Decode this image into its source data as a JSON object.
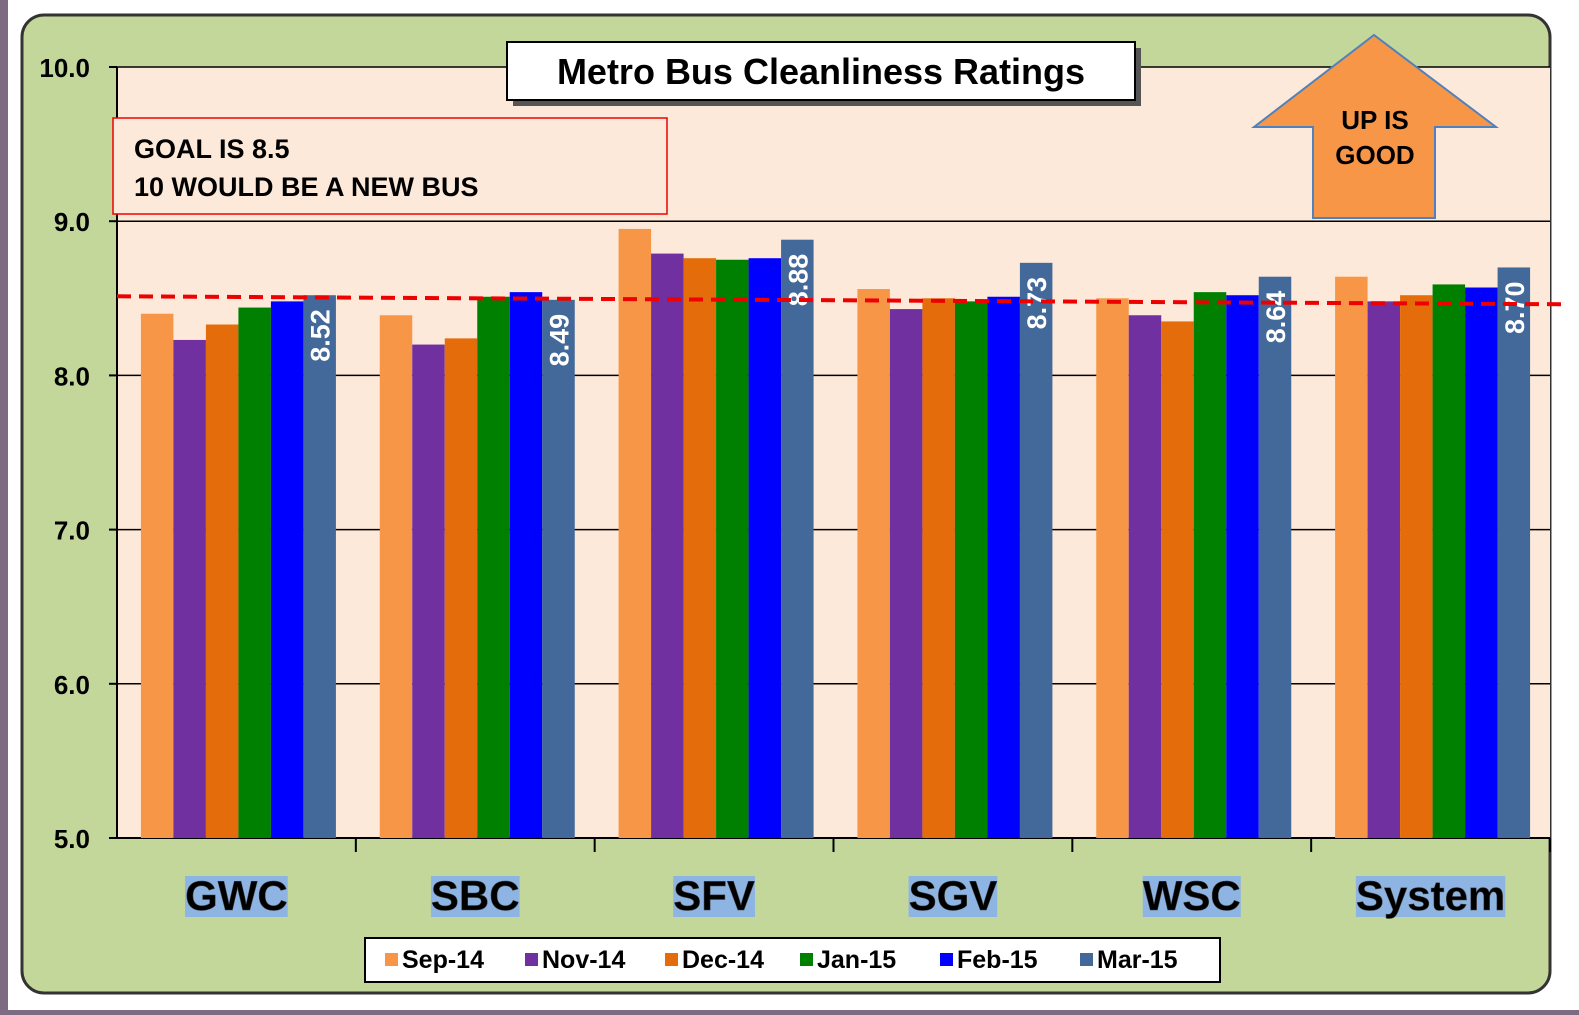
{
  "chart_data": {
    "type": "bar",
    "title": "Metro Bus Cleanliness Ratings",
    "categories": [
      "GWC",
      "SBC",
      "SFV",
      "SGV",
      "WSC",
      "System"
    ],
    "series": [
      {
        "name": "Sep-14",
        "color": "#f79646",
        "values": [
          8.4,
          8.39,
          8.95,
          8.56,
          8.5,
          8.64
        ]
      },
      {
        "name": "Nov-14",
        "color": "#7030a0",
        "values": [
          8.23,
          8.2,
          8.79,
          8.43,
          8.39,
          8.48
        ]
      },
      {
        "name": "Dec-14",
        "color": "#e46c0a",
        "values": [
          8.33,
          8.24,
          8.76,
          8.5,
          8.35,
          8.52
        ]
      },
      {
        "name": "Jan-15",
        "color": "#008000",
        "values": [
          8.44,
          8.51,
          8.75,
          8.48,
          8.54,
          8.59
        ]
      },
      {
        "name": "Feb-15",
        "color": "#0000ff",
        "values": [
          8.48,
          8.54,
          8.76,
          8.51,
          8.52,
          8.57
        ]
      },
      {
        "name": "Mar-15",
        "color": "#43689a",
        "values": [
          8.52,
          8.49,
          8.88,
          8.73,
          8.64,
          8.7
        ],
        "value_labels": [
          "8.52",
          "8.49",
          "8.88",
          "8.73",
          "8.64",
          "8.70"
        ]
      }
    ],
    "ylim": [
      5,
      10
    ],
    "yticks": [
      {
        "value": 5,
        "label": "5.0"
      },
      {
        "value": 6,
        "label": "6.0"
      },
      {
        "value": 7,
        "label": "7.0"
      },
      {
        "value": 8,
        "label": "8.0"
      },
      {
        "value": 9,
        "label": "9.0"
      },
      {
        "value": 10,
        "label": "10.0"
      }
    ],
    "grid": true,
    "goal_line": 8.5,
    "annotations": [
      "GOAL IS 8.5",
      "10 WOULD BE A NEW BUS"
    ],
    "arrow_text": [
      "UP IS",
      "GOOD"
    ]
  }
}
